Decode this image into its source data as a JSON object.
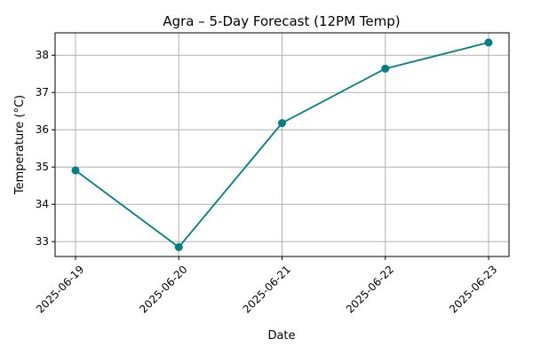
{
  "chart_data": {
    "type": "line",
    "title": "Agra – 5-Day Forecast (12PM Temp)",
    "xlabel": "Date",
    "ylabel": "Temperature (°C)",
    "x": [
      "2025-06-19",
      "2025-06-20",
      "2025-06-21",
      "2025-06-22",
      "2025-06-23"
    ],
    "series": [
      {
        "values": [
          34.91,
          32.85,
          36.18,
          37.64,
          38.34
        ],
        "color": "#008080"
      }
    ],
    "ylim": [
      32.6,
      38.6
    ],
    "yticks": [
      33,
      34,
      35,
      36,
      37,
      38
    ],
    "grid": true,
    "xtick_rotation": 45
  }
}
